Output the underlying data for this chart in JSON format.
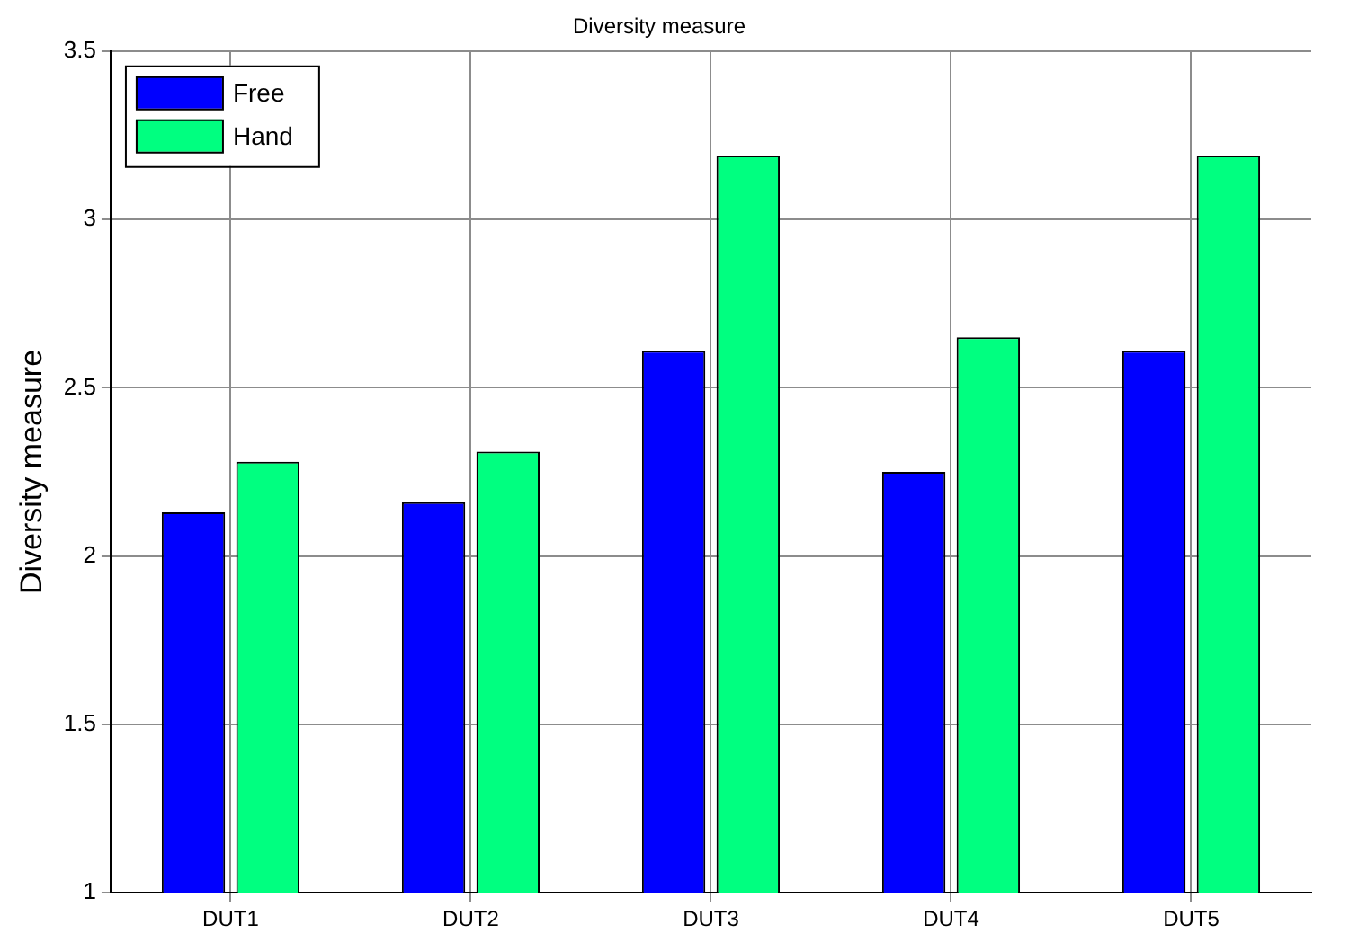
{
  "chart_data": {
    "type": "bar",
    "title": "Diversity measure",
    "ylabel": "Diversity measure",
    "categories": [
      "DUT1",
      "DUT2",
      "DUT3",
      "DUT4",
      "DUT5"
    ],
    "series": [
      {
        "name": "Free",
        "color": "#0000ff",
        "values": [
          2.13,
          2.16,
          2.61,
          2.25,
          2.61
        ]
      },
      {
        "name": "Hand",
        "color": "#00ff80",
        "values": [
          2.28,
          2.31,
          3.19,
          2.65,
          3.19
        ]
      }
    ],
    "ylim": [
      1,
      3.5
    ],
    "yticks": [
      1,
      1.5,
      2,
      2.5,
      3,
      3.5
    ],
    "grid": true,
    "legend": "top left"
  }
}
